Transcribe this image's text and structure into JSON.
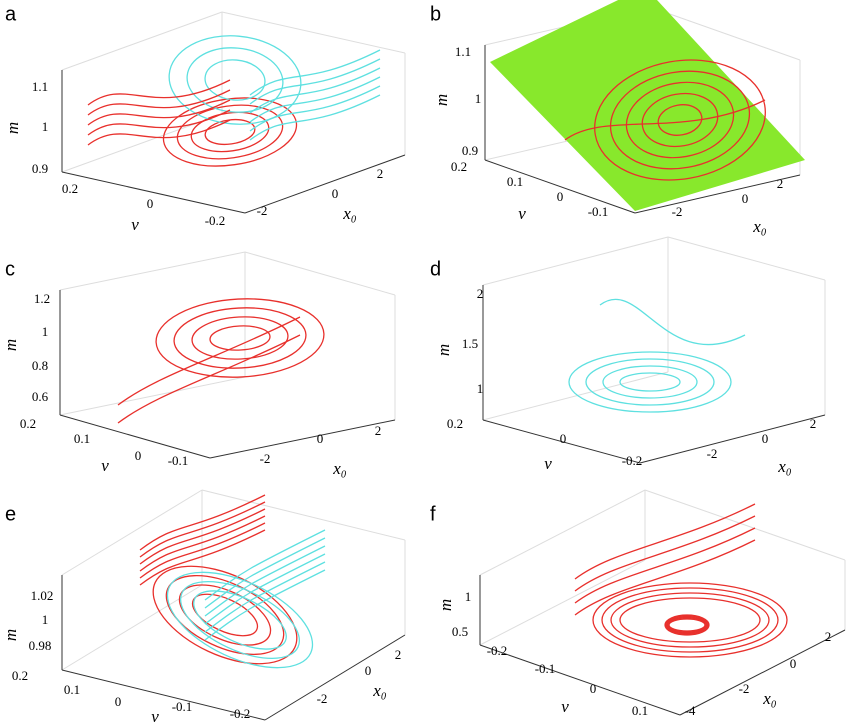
{
  "panels": [
    {
      "label": "a",
      "z_label": "m",
      "y_label": "v",
      "x_label": "x₀",
      "z_ticks": [
        "1.1",
        "1",
        "0.9"
      ],
      "y_ticks": [
        "0.2",
        "0",
        "-0.2"
      ],
      "x_ticks": [
        "-2",
        "0",
        "2"
      ]
    },
    {
      "label": "b",
      "z_label": "m",
      "y_label": "v",
      "x_label": "x₀",
      "z_ticks": [
        "1.1",
        "1",
        "0.9"
      ],
      "y_ticks": [
        "0.2",
        "0.1",
        "0",
        "-0.1"
      ],
      "x_ticks": [
        "-2",
        "0",
        "2"
      ]
    },
    {
      "label": "c",
      "z_label": "m",
      "y_label": "v",
      "x_label": "x₀",
      "z_ticks": [
        "1.2",
        "1",
        "0.8",
        "0.6"
      ],
      "y_ticks": [
        "0.2",
        "0.1",
        "0",
        "-0.1"
      ],
      "x_ticks": [
        "-2",
        "0",
        "2"
      ]
    },
    {
      "label": "d",
      "z_label": "m",
      "y_label": "v",
      "x_label": "x₀",
      "z_ticks": [
        "2",
        "1.5",
        "1"
      ],
      "y_ticks": [
        "0.2",
        "0",
        "-0.2"
      ],
      "x_ticks": [
        "-2",
        "0",
        "2"
      ]
    },
    {
      "label": "e",
      "z_label": "m",
      "y_label": "v",
      "x_label": "x₀",
      "z_ticks": [
        "1.02",
        "1",
        "0.98"
      ],
      "y_ticks": [
        "0.2",
        "0.1",
        "0",
        "-0.1",
        "-0.2"
      ],
      "x_ticks": [
        "-2",
        "0",
        "2"
      ]
    },
    {
      "label": "f",
      "z_label": "m",
      "y_label": "v",
      "x_label": "x₀",
      "z_ticks": [
        "1",
        "0.5"
      ],
      "y_ticks": [
        "-0.2",
        "-0.1",
        "0",
        "0.1"
      ],
      "x_ticks": [
        "-4",
        "-2",
        "0",
        "2"
      ]
    }
  ]
}
